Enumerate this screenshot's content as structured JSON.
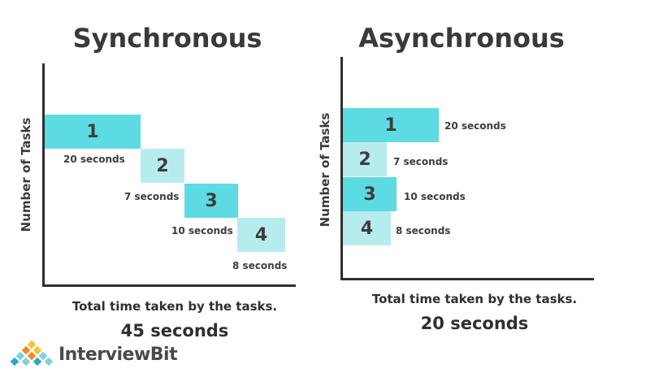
{
  "colors": {
    "dark_teal": "#5ddbe2",
    "light_teal": "#b7ecef",
    "axis": "#2f2f2f",
    "text": "#3d3d3d"
  },
  "synchronous": {
    "title": "Synchronous",
    "ylabel": "Number of Tasks",
    "tasks": [
      {
        "label": "1",
        "duration": "20 seconds",
        "seconds": 20,
        "shade": "dark"
      },
      {
        "label": "2",
        "duration": "7 seconds",
        "seconds": 7,
        "shade": "light"
      },
      {
        "label": "3",
        "duration": "10 seconds",
        "seconds": 10,
        "shade": "dark"
      },
      {
        "label": "4",
        "duration": "8 seconds",
        "seconds": 8,
        "shade": "light"
      }
    ],
    "total_label": "Total time taken by the tasks.",
    "total_value": "45 seconds"
  },
  "asynchronous": {
    "title": "Asynchronous",
    "ylabel": "Number of Tasks",
    "tasks": [
      {
        "label": "1",
        "duration": "20 seconds",
        "seconds": 20,
        "shade": "dark"
      },
      {
        "label": "2",
        "duration": "7 seconds",
        "seconds": 7,
        "shade": "light"
      },
      {
        "label": "3",
        "duration": "10 seconds",
        "seconds": 10,
        "shade": "dark"
      },
      {
        "label": "4",
        "duration": "8 seconds",
        "seconds": 8,
        "shade": "light"
      }
    ],
    "total_label": "Total time taken by the tasks.",
    "total_value": "20 seconds"
  },
  "logo": {
    "text": "InterviewBit",
    "icon": "diamond-grid-logo-icon"
  }
}
